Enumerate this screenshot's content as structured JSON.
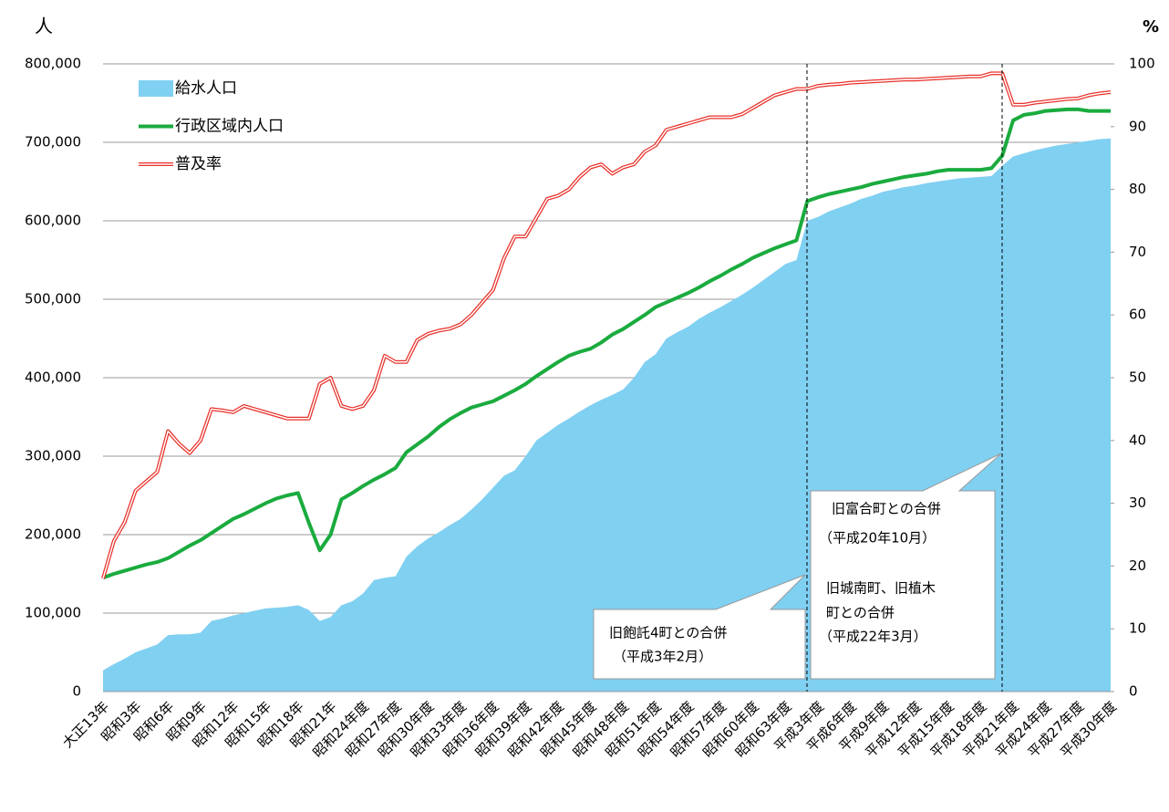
{
  "chart_data": {
    "type": "line",
    "y_unit": "人",
    "y2_unit": "%",
    "categories": [
      "大正13年",
      null,
      null,
      "昭和3年",
      null,
      null,
      "昭和6年",
      null,
      null,
      "昭和9年",
      null,
      null,
      "昭和12年",
      null,
      null,
      "昭和15年",
      null,
      null,
      "昭和18年",
      null,
      null,
      "昭和21年",
      null,
      null,
      "昭和24年度",
      null,
      null,
      "昭和27年度",
      null,
      null,
      "昭和30年度",
      null,
      null,
      "昭和33年度",
      null,
      null,
      "昭和36年度",
      null,
      null,
      "昭和39年度",
      null,
      null,
      "昭和42年度",
      null,
      null,
      "昭和45年度",
      null,
      null,
      "昭和48年度",
      null,
      null,
      "昭和51年度",
      null,
      null,
      "昭和54年度",
      null,
      null,
      "昭和57年度",
      null,
      null,
      "昭和60年度",
      null,
      null,
      "昭和63年度",
      null,
      null,
      "平成3年度",
      null,
      null,
      "平成6年度",
      null,
      null,
      "平成9年度",
      null,
      null,
      "平成12年度",
      null,
      null,
      "平成15年度",
      null,
      null,
      "平成18年度",
      null,
      null,
      "平成21年度",
      null,
      null,
      "平成24年度",
      null,
      null,
      "平成27年度",
      null,
      null,
      "平成30年度"
    ],
    "series": [
      {
        "name": "給水人口",
        "type": "area",
        "color": "#80d0f2",
        "values": [
          27000,
          35000,
          42000,
          50000,
          55000,
          60000,
          72000,
          73000,
          73000,
          75000,
          90000,
          93000,
          97000,
          100000,
          103000,
          106000,
          107000,
          108000,
          110000,
          104000,
          90000,
          95000,
          110000,
          115000,
          125000,
          142000,
          145000,
          147000,
          172000,
          185000,
          195000,
          203000,
          212000,
          220000,
          232000,
          245000,
          260000,
          275000,
          282000,
          300000,
          320000,
          330000,
          340000,
          348000,
          357000,
          365000,
          372000,
          378000,
          385000,
          400000,
          420000,
          430000,
          450000,
          458000,
          465000,
          475000,
          483000,
          490000,
          498000,
          506000,
          515000,
          525000,
          535000,
          545000,
          550000,
          600000,
          605000,
          612000,
          617000,
          622000,
          628000,
          632000,
          637000,
          640000,
          643000,
          645000,
          648000,
          650000,
          652000,
          654000,
          655000,
          656000,
          657000,
          670000,
          682000,
          686000,
          690000,
          693000,
          696000,
          698000,
          700000,
          702000,
          704000,
          705000
        ]
      },
      {
        "name": "行政区域内人口",
        "type": "line",
        "color": "#1aab3e",
        "values": [
          145000,
          150000,
          154000,
          158000,
          162000,
          165000,
          170000,
          178000,
          186000,
          193000,
          202000,
          211000,
          220000,
          226000,
          233000,
          240000,
          246000,
          250000,
          253000,
          215000,
          180000,
          200000,
          245000,
          253000,
          262000,
          270000,
          277000,
          285000,
          305000,
          315000,
          325000,
          337000,
          347000,
          355000,
          362000,
          366000,
          370000,
          377000,
          384000,
          392000,
          402000,
          411000,
          420000,
          428000,
          433000,
          437000,
          445000,
          455000,
          462000,
          471000,
          480000,
          490000,
          496000,
          502000,
          508000,
          515000,
          523000,
          530000,
          538000,
          545000,
          553000,
          559000,
          565000,
          570000,
          575000,
          625000,
          630000,
          634000,
          637000,
          640000,
          643000,
          647000,
          650000,
          653000,
          656000,
          658000,
          660000,
          663000,
          665000,
          665000,
          665000,
          665000,
          667000,
          683000,
          728000,
          735000,
          737000,
          740000,
          741000,
          742000,
          742000,
          740000,
          740000,
          740000
        ]
      },
      {
        "name": "普及率",
        "type": "line",
        "axis": "y2",
        "color": "#e8312a",
        "values": [
          18,
          24,
          27,
          32,
          33.5,
          35,
          41.5,
          39.5,
          38,
          40,
          45,
          44.8,
          44.5,
          45.5,
          45,
          44.5,
          44,
          43.5,
          43.5,
          43.5,
          49,
          50,
          45.5,
          45,
          45.5,
          48,
          53.5,
          52.5,
          52.5,
          56,
          57,
          57.5,
          57.8,
          58.5,
          60,
          62,
          64,
          69,
          72.5,
          72.5,
          75.5,
          78.5,
          79,
          80,
          82,
          83.5,
          84,
          82.5,
          83.5,
          84,
          86,
          87,
          89.5,
          90,
          90.5,
          91,
          91.5,
          91.5,
          91.5,
          92,
          93,
          94,
          95,
          95.5,
          96,
          96,
          96.5,
          96.7,
          96.8,
          97,
          97.1,
          97.2,
          97.3,
          97.4,
          97.5,
          97.5,
          97.6,
          97.7,
          97.8,
          97.9,
          98,
          98,
          98.5,
          98.5,
          93.5,
          93.5,
          93.8,
          94,
          94.2,
          94.4,
          94.5,
          95,
          95.3,
          95.5
        ]
      }
    ],
    "ylim": [
      0,
      800000
    ],
    "yticks": [
      0,
      {
        "value": 100000,
        "label": "100,000"
      },
      {
        "value": 200000,
        "label": "200,000"
      },
      {
        "value": 300000,
        "label": "300,000"
      },
      {
        "value": 400000,
        "label": "400,000"
      },
      {
        "value": 500000,
        "label": "500,000"
      },
      {
        "value": 600000,
        "label": "600,000"
      },
      {
        "value": 700000,
        "label": "700,000"
      },
      {
        "value": 800000,
        "label": "800,000"
      }
    ],
    "y2lim": [
      0,
      100
    ],
    "y2ticks": [
      0,
      10,
      20,
      30,
      40,
      50,
      60,
      70,
      80,
      90,
      100
    ],
    "grid": true,
    "legend": "top-left",
    "annotations": [
      {
        "lines": [
          "旧飽託4町との合併",
          "（平成3年2月）"
        ]
      },
      {
        "lines": [
          "旧富合町との合併",
          "（平成20年10月）",
          "旧城南町、旧植木",
          "町との合併",
          "（平成22年3月）"
        ]
      }
    ]
  }
}
